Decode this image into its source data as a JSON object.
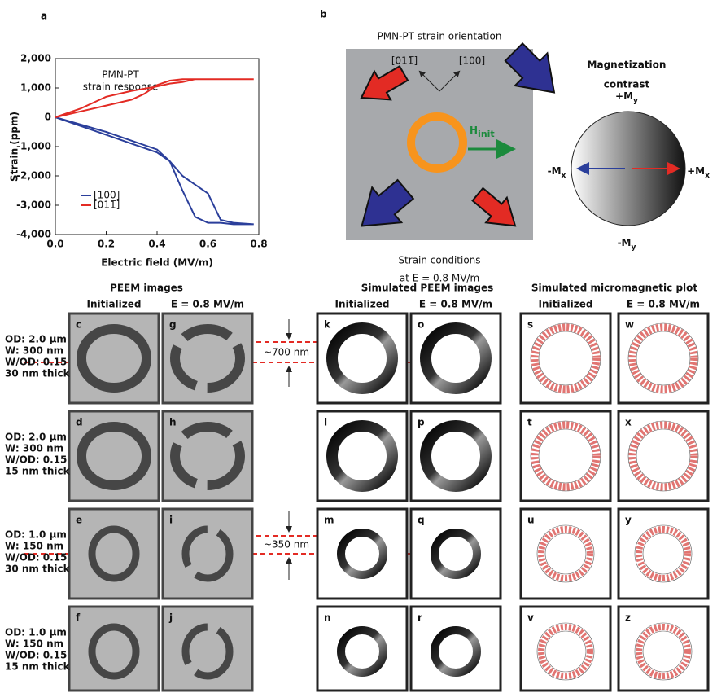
{
  "chart_data": {
    "type": "line",
    "label": "a",
    "annotation": [
      "PMN-PT",
      "strain response"
    ],
    "x_label": "Electric field (MV/m)",
    "y_label": "Strain (ppm)",
    "xlim": [
      0,
      0.8
    ],
    "xticks": [
      {
        "value": 0,
        "label": "0.0"
      },
      0.2,
      0.4,
      0.6,
      0.8
    ],
    "ylim": [
      -4000,
      2000
    ],
    "yticks": [
      {
        "value": -4000,
        "label": "-4,000"
      },
      {
        "value": -3000,
        "label": "-3,000"
      },
      {
        "value": -2000,
        "label": "-2,000"
      },
      {
        "value": -1000,
        "label": "-1,000"
      },
      0,
      {
        "value": 1000,
        "label": "1,000"
      },
      {
        "value": 2000,
        "label": "2,000"
      }
    ],
    "series": [
      {
        "name": "[100]",
        "color": "#2b3f9b",
        "x": [
          0,
          0.1,
          0.2,
          0.3,
          0.4,
          0.45,
          0.5,
          0.55,
          0.6,
          0.65,
          0.7,
          0.78,
          0.7,
          0.65,
          0.6,
          0.55,
          0.5,
          0.45,
          0.4,
          0.3,
          0.2,
          0.1,
          0
        ],
        "values": [
          0,
          -300,
          -600,
          -900,
          -1200,
          -1500,
          -2000,
          -2300,
          -2600,
          -3500,
          -3600,
          -3650,
          -3650,
          -3600,
          -3600,
          -3400,
          -2500,
          -1500,
          -1100,
          -800,
          -500,
          -250,
          0
        ]
      },
      {
        "name": "[011̅]",
        "color": "#e32b24",
        "x": [
          0,
          0.1,
          0.2,
          0.3,
          0.4,
          0.45,
          0.5,
          0.55,
          0.6,
          0.78,
          0.6,
          0.5,
          0.45,
          0.4,
          0.35,
          0.3,
          0.2,
          0.1,
          0
        ],
        "values": [
          0,
          300,
          700,
          900,
          1050,
          1150,
          1200,
          1300,
          1300,
          1300,
          1300,
          1300,
          1250,
          1100,
          800,
          600,
          400,
          200,
          0
        ]
      }
    ]
  },
  "panel_b": {
    "label": "b",
    "title": "PMN-PT strain orientation",
    "dir1": "[011̅]",
    "dir2": "[100]",
    "field": "H",
    "field_sub": "init",
    "caption": [
      "Strain conditions",
      "at E = 0.8 MV/m"
    ]
  },
  "contrast": {
    "title": [
      "Magnetization",
      "contrast"
    ],
    "plus_y": [
      "+M",
      "y"
    ],
    "minus_y": [
      "-M",
      "y"
    ],
    "minus_x": [
      "-M",
      "x"
    ],
    "plus_x": [
      "+M",
      "x"
    ]
  },
  "groups": [
    {
      "title": "PEEM images",
      "columns": [
        "Initialized",
        "E = 0.8 MV/m"
      ],
      "panels": [
        [
          "c",
          "d",
          "e",
          "f"
        ],
        [
          "g",
          "h",
          "i",
          "j"
        ]
      ]
    },
    {
      "title": "Simulated PEEM images",
      "columns": [
        "Initialized",
        "E = 0.8 MV/m"
      ],
      "panels": [
        [
          "k",
          "l",
          "m",
          "n"
        ],
        [
          "o",
          "p",
          "q",
          "r"
        ]
      ]
    },
    {
      "title": "Simulated micromagnetic plot",
      "columns": [
        "Initialized",
        "E = 0.8 MV/m"
      ],
      "panels": [
        [
          "s",
          "t",
          "u",
          "v"
        ],
        [
          "w",
          "x",
          "y",
          "z"
        ]
      ]
    }
  ],
  "row_labels": [
    [
      "OD: 2.0 µm",
      "W: 300 nm",
      "W/OD: 0.15",
      "30 nm thick"
    ],
    [
      "OD: 2.0 µm",
      "W: 300 nm",
      "W/OD: 0.15",
      "15 nm thick"
    ],
    [
      "OD: 1.0 µm",
      "W: 150 nm",
      "W/OD: 0.15",
      "30 nm thick"
    ],
    [
      "OD: 1.0 µm",
      "W: 150 nm",
      "W/OD: 0.15",
      "15 nm thick"
    ]
  ],
  "spacings": [
    "~700 nm",
    "~350 nm"
  ]
}
